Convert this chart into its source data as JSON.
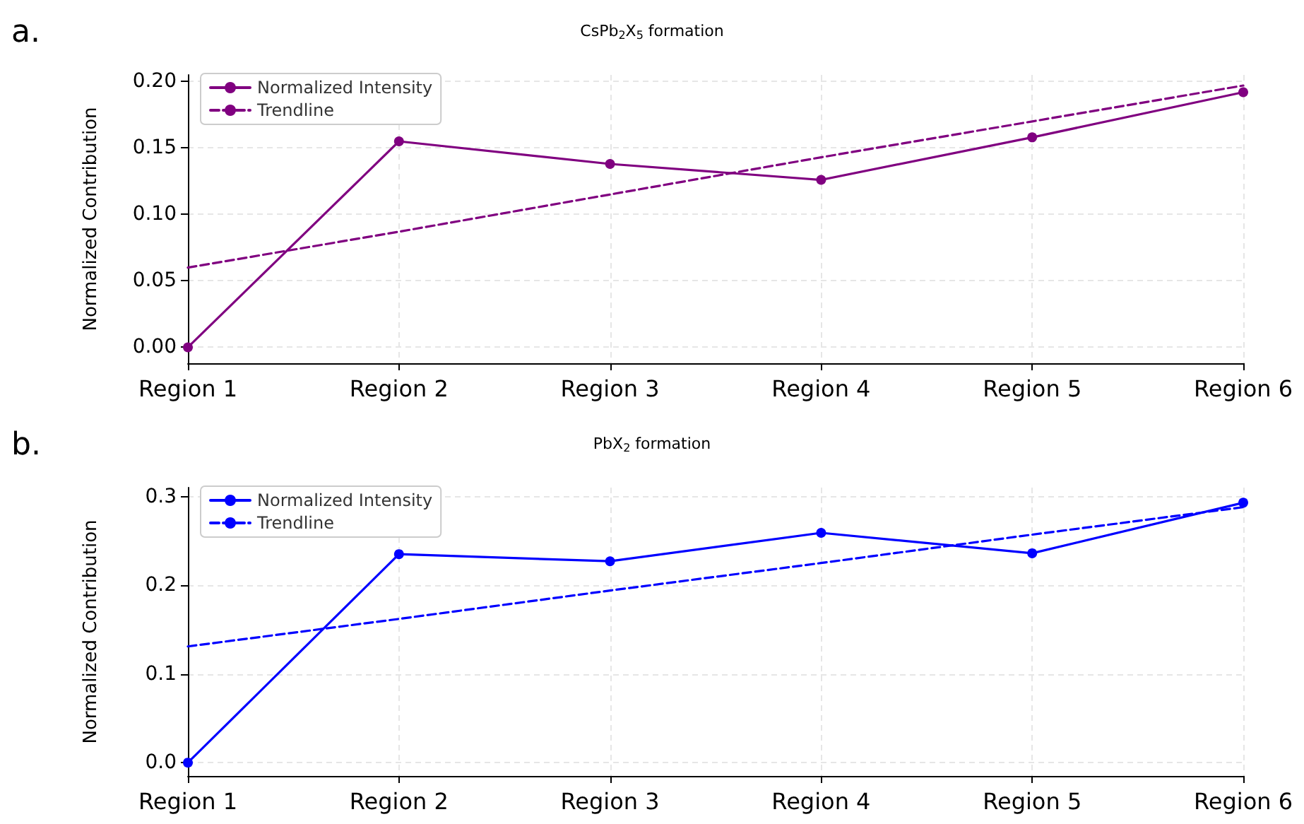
{
  "chart_data": [
    {
      "type": "line",
      "title": "CsPb$_{2}$X$_{5}$ formation",
      "ylabel": "Normalized Contribution",
      "annotations": [
        "a."
      ],
      "categories": [
        "Region 1",
        "Region 2",
        "Region 3",
        "Region 4",
        "Region 5",
        "Region 6"
      ],
      "series": [
        {
          "name": "Normalized Intensity",
          "color": "#800080",
          "values": [
            0.0,
            0.155,
            0.138,
            0.126,
            0.158,
            0.192
          ],
          "marker": "circle",
          "line_style": "solid"
        },
        {
          "name": "Trendline",
          "color": "#800080",
          "values": [
            0.06,
            0.087,
            0.115,
            0.143,
            0.17,
            0.197
          ],
          "marker": "none",
          "line_style": "dashed"
        }
      ],
      "ylim": [
        -0.012,
        0.205
      ],
      "yticks": [
        {
          "value": 0,
          "label": "0.00"
        },
        {
          "value": 0.05,
          "label": "0.05"
        },
        {
          "value": 0.1,
          "label": "0.10"
        },
        {
          "value": 0.15,
          "label": "0.15"
        },
        {
          "value": 0.2,
          "label": "0.20"
        }
      ],
      "grid": true,
      "legend": "top left"
    },
    {
      "type": "line",
      "title": "PbX$_{2}$ formation",
      "ylabel": "Normalized Contribution",
      "annotations": [
        "b."
      ],
      "categories": [
        "Region 1",
        "Region 2",
        "Region 3",
        "Region 4",
        "Region 5",
        "Region 6"
      ],
      "series": [
        {
          "name": "Normalized Intensity",
          "color": "#0000ff",
          "values": [
            0.0,
            0.235,
            0.227,
            0.259,
            0.236,
            0.293
          ],
          "marker": "circle",
          "line_style": "solid"
        },
        {
          "name": "Trendline",
          "color": "#0000ff",
          "values": [
            0.131,
            0.162,
            0.194,
            0.225,
            0.257,
            0.288
          ],
          "marker": "none",
          "line_style": "dashed"
        }
      ],
      "ylim": [
        -0.015,
        0.31
      ],
      "yticks": [
        {
          "value": 0,
          "label": "0.0"
        },
        {
          "value": 0.1,
          "label": "0.1"
        },
        {
          "value": 0.2,
          "label": "0.2"
        },
        {
          "value": 0.3,
          "label": "0.3"
        }
      ],
      "grid": true,
      "legend": "top left"
    }
  ]
}
